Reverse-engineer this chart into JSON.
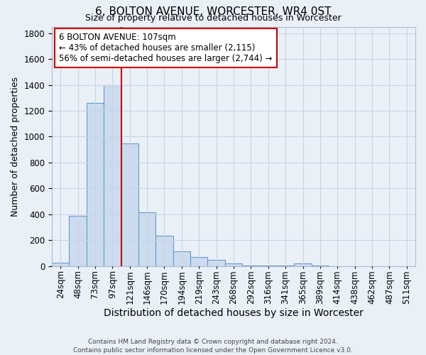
{
  "title": "6, BOLTON AVENUE, WORCESTER, WR4 0ST",
  "subtitle": "Size of property relative to detached houses in Worcester",
  "xlabel": "Distribution of detached houses by size in Worcester",
  "ylabel": "Number of detached properties",
  "footnote1": "Contains HM Land Registry data © Crown copyright and database right 2024.",
  "footnote2": "Contains public sector information licensed under the Open Government Licence v3.0.",
  "annotation_line1": "6 BOLTON AVENUE: 107sqm",
  "annotation_line2": "← 43% of detached houses are smaller (2,115)",
  "annotation_line3": "56% of semi-detached houses are larger (2,744) →",
  "bar_color": "#ccdcee",
  "bar_edge_color": "#6699cc",
  "grid_color": "#c8d4e4",
  "background_color": "#eaf0f8",
  "vline_color": "#cc0000",
  "annotation_box_color": "#ffffff",
  "annotation_box_edge": "#cc0000",
  "categories": [
    "24sqm",
    "48sqm",
    "73sqm",
    "97sqm",
    "121sqm",
    "146sqm",
    "170sqm",
    "194sqm",
    "219sqm",
    "243sqm",
    "268sqm",
    "292sqm",
    "316sqm",
    "341sqm",
    "365sqm",
    "389sqm",
    "414sqm",
    "438sqm",
    "462sqm",
    "487sqm",
    "511sqm"
  ],
  "values": [
    28,
    390,
    1260,
    1400,
    950,
    415,
    235,
    115,
    70,
    50,
    20,
    5,
    5,
    5,
    20,
    5,
    0,
    0,
    0,
    0,
    0
  ],
  "vline_x": 3.5,
  "ylim": [
    0,
    1850
  ],
  "yticks": [
    0,
    200,
    400,
    600,
    800,
    1000,
    1200,
    1400,
    1600,
    1800
  ],
  "title_fontsize": 11,
  "subtitle_fontsize": 9,
  "ylabel_fontsize": 9,
  "xlabel_fontsize": 10,
  "tick_fontsize": 8.5,
  "annot_fontsize": 8.5,
  "footnote_fontsize": 6.5
}
